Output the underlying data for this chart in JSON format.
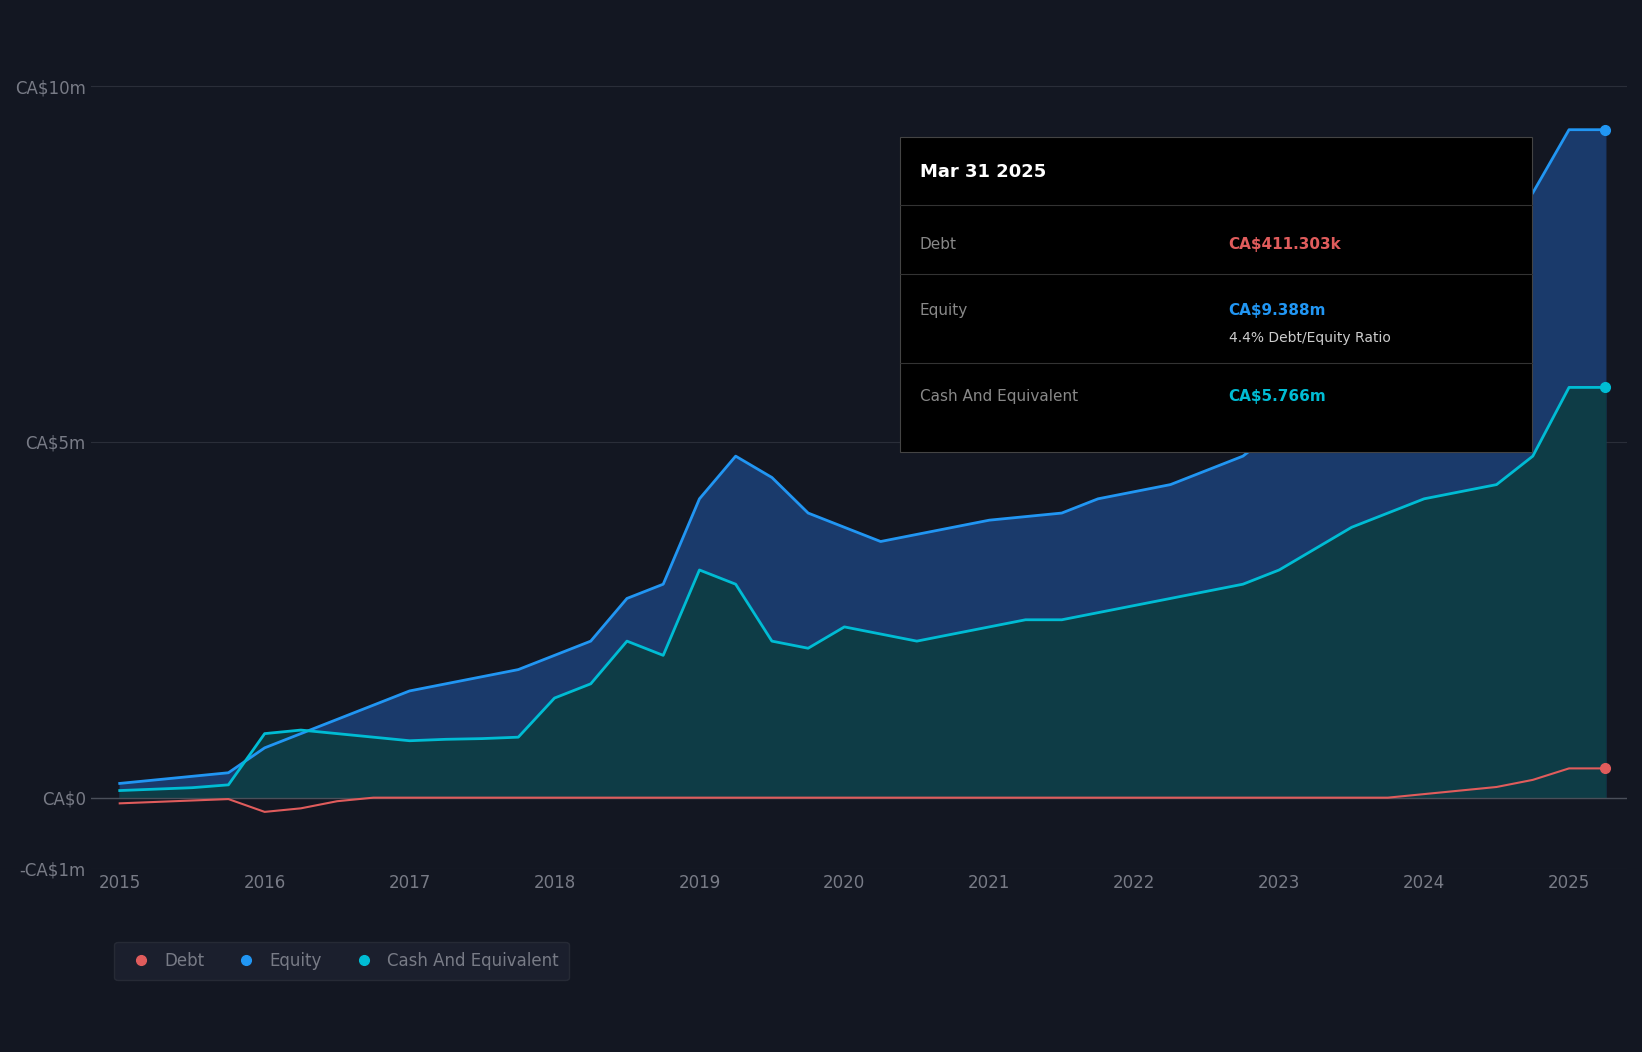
{
  "background_color": "#131722",
  "plot_bg_color": "#131722",
  "grid_color": "#2a2e39",
  "axis_label_color": "#787b86",
  "title_color": "#ffffff",
  "debt_color": "#e05c5c",
  "equity_color": "#2196f3",
  "cash_color": "#00bcd4",
  "equity_fill_color": "#1a3a6b",
  "cash_fill_color": "#0d3d40",
  "ylim": [
    -1000000,
    11000000
  ],
  "yticks": [
    -1000000,
    0,
    5000000,
    10000000
  ],
  "ytick_labels": [
    "-CA$1m",
    "CA$0",
    "CA$5m",
    "CA$10m"
  ],
  "tooltip_bg": "#000000",
  "tooltip_title": "Mar 31 2025",
  "tooltip_debt_label": "Debt",
  "tooltip_debt_value": "CA$411.303k",
  "tooltip_equity_label": "Equity",
  "tooltip_equity_value": "CA$9.388m",
  "tooltip_ratio_label": "4.4% Debt/Equity Ratio",
  "tooltip_cash_label": "Cash And Equivalent",
  "tooltip_cash_value": "CA$5.766m",
  "legend_items": [
    "Debt",
    "Equity",
    "Cash And Equivalent"
  ],
  "dates": [
    2015.0,
    2015.25,
    2015.5,
    2015.75,
    2016.0,
    2016.25,
    2016.5,
    2016.75,
    2017.0,
    2017.25,
    2017.5,
    2017.75,
    2018.0,
    2018.25,
    2018.5,
    2018.75,
    2019.0,
    2019.25,
    2019.5,
    2019.75,
    2020.0,
    2020.25,
    2020.5,
    2020.75,
    2021.0,
    2021.25,
    2021.5,
    2021.75,
    2022.0,
    2022.25,
    2022.5,
    2022.75,
    2023.0,
    2023.25,
    2023.5,
    2023.75,
    2024.0,
    2024.25,
    2024.5,
    2024.75,
    2025.0,
    2025.25
  ],
  "debt": [
    -80000,
    -60000,
    -40000,
    -20000,
    -200000,
    -150000,
    -50000,
    0,
    0,
    0,
    0,
    0,
    0,
    0,
    0,
    0,
    0,
    0,
    0,
    0,
    0,
    0,
    0,
    0,
    0,
    0,
    0,
    0,
    0,
    0,
    0,
    0,
    0,
    0,
    0,
    0,
    50000,
    100000,
    150000,
    250000,
    411303,
    411303
  ],
  "equity": [
    200000,
    250000,
    300000,
    350000,
    700000,
    900000,
    1100000,
    1300000,
    1500000,
    1600000,
    1700000,
    1800000,
    2000000,
    2200000,
    2800000,
    3000000,
    4200000,
    4800000,
    4500000,
    4000000,
    3800000,
    3600000,
    3700000,
    3800000,
    3900000,
    3950000,
    4000000,
    4200000,
    4300000,
    4400000,
    4600000,
    4800000,
    5200000,
    6800000,
    7000000,
    7200000,
    7400000,
    7600000,
    7800000,
    8500000,
    9388000,
    9388000
  ],
  "cash": [
    100000,
    120000,
    140000,
    180000,
    900000,
    950000,
    900000,
    850000,
    800000,
    820000,
    830000,
    850000,
    1400000,
    1600000,
    2200000,
    2000000,
    3200000,
    3000000,
    2200000,
    2100000,
    2400000,
    2300000,
    2200000,
    2300000,
    2400000,
    2500000,
    2500000,
    2600000,
    2700000,
    2800000,
    2900000,
    3000000,
    3200000,
    3500000,
    3800000,
    4000000,
    4200000,
    4300000,
    4400000,
    4800000,
    5766000,
    5766000
  ],
  "xticks": [
    2015,
    2016,
    2017,
    2018,
    2019,
    2020,
    2021,
    2022,
    2023,
    2024,
    2025
  ]
}
